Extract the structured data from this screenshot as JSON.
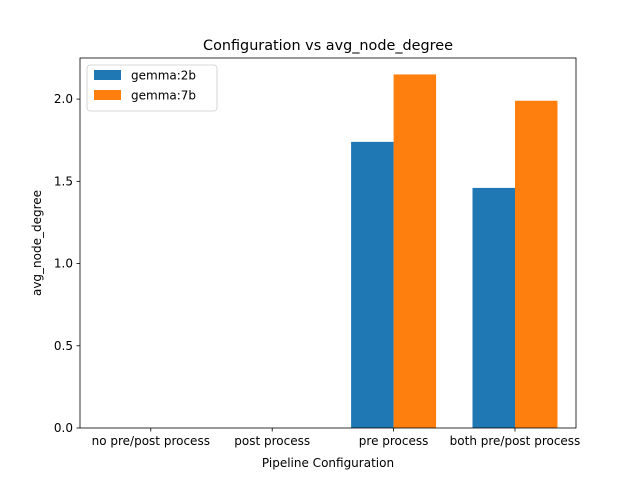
{
  "chart_data": {
    "type": "bar",
    "title": "Configuration vs avg_node_degree",
    "xlabel": "Pipeline Configuration",
    "ylabel": "avg_node_degree",
    "categories": [
      "no pre/post process",
      "post process",
      "pre process",
      "both pre/post process"
    ],
    "series": [
      {
        "name": "gemma:2b",
        "color": "#1f77b4",
        "values": [
          0,
          0,
          1.74,
          1.46
        ]
      },
      {
        "name": "gemma:7b",
        "color": "#ff7f0e",
        "values": [
          0,
          0,
          2.15,
          1.99
        ]
      }
    ],
    "ylim": [
      0,
      2.25
    ],
    "yticks": [
      "0.0",
      "0.5",
      "1.0",
      "1.5",
      "2.0"
    ],
    "grid": false,
    "legend_position": "top-left"
  }
}
